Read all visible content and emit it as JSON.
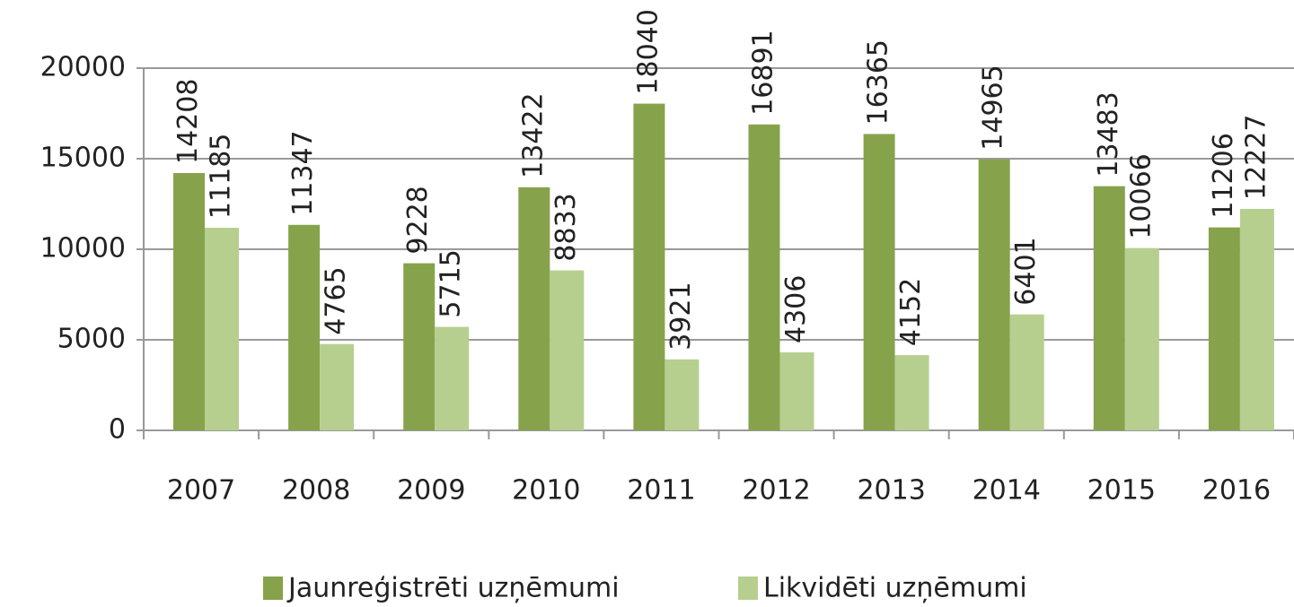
{
  "chart_data": {
    "type": "bar",
    "categories": [
      "2007",
      "2008",
      "2009",
      "2010",
      "2011",
      "2012",
      "2013",
      "2014",
      "2015",
      "2016"
    ],
    "series": [
      {
        "name": "Jaunreģistrēti uzņēmumi",
        "color": "#86a34c",
        "values": [
          14208,
          11347,
          9228,
          13422,
          18040,
          16891,
          16365,
          14965,
          13483,
          11206
        ]
      },
      {
        "name": "Likvidēti uzņēmumi",
        "color": "#b6cf8f",
        "values": [
          11185,
          4765,
          5715,
          8833,
          3921,
          4306,
          4152,
          6401,
          10066,
          12227
        ]
      }
    ],
    "ylim": [
      0,
      20000
    ],
    "yticks": [
      0,
      5000,
      10000,
      15000,
      20000
    ],
    "grid": true
  }
}
